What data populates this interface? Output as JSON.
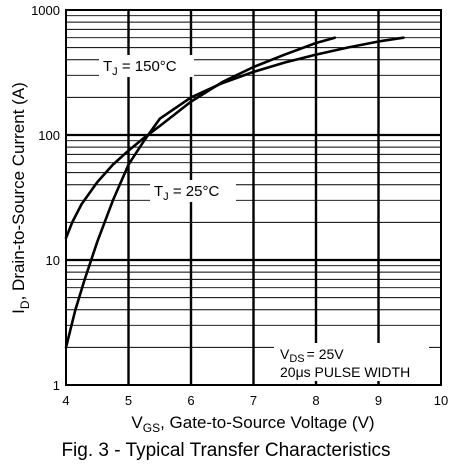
{
  "chart_data": {
    "type": "line",
    "title": "Fig. 3 - Typical Transfer Characteristics",
    "xscale": "linear",
    "yscale": "log",
    "xlim": [
      4,
      10
    ],
    "ylim": [
      1,
      1000
    ],
    "grid": true,
    "x_ticks": [
      "4",
      "5",
      "6",
      "7",
      "8",
      "9",
      "10"
    ],
    "y_ticks": [
      "1",
      "10",
      "100",
      "1000"
    ],
    "xlabel": {
      "main": "V",
      "sub": "GS",
      "rest": ", Gate-to-Source Voltage (V)"
    },
    "ylabel": {
      "main": "I",
      "sub": "D",
      "rest": ",  Drain-to-Source Current (A)"
    },
    "series": [
      {
        "name": "TJ = 150°C",
        "label": {
          "T": "T",
          "sub": "J",
          "rest": " = 150°C"
        },
        "x": [
          4.0,
          4.1,
          4.25,
          4.5,
          4.75,
          5.0,
          5.25,
          5.5,
          6.0,
          6.5,
          7.0,
          7.5,
          8.0,
          8.3
        ],
        "y": [
          15,
          20,
          28,
          42,
          58,
          75,
          95,
          118,
          185,
          265,
          350,
          440,
          545,
          600
        ]
      },
      {
        "name": "TJ = 25°C",
        "label": {
          "T": "T",
          "sub": "J",
          "rest": " = 25°C"
        },
        "x": [
          4.0,
          4.15,
          4.3,
          4.5,
          4.75,
          5.0,
          5.25,
          5.5,
          6.0,
          6.5,
          7.0,
          7.5,
          8.0,
          8.5,
          9.0,
          9.4
        ],
        "y": [
          2,
          4,
          7,
          14,
          30,
          58,
          90,
          135,
          200,
          260,
          320,
          380,
          440,
          500,
          560,
          600
        ]
      }
    ],
    "conditions": {
      "line1_main": "V",
      "line1_sub": "DS",
      "line1_rest": "= 25V",
      "line2": "20μs PULSE WIDTH"
    }
  }
}
